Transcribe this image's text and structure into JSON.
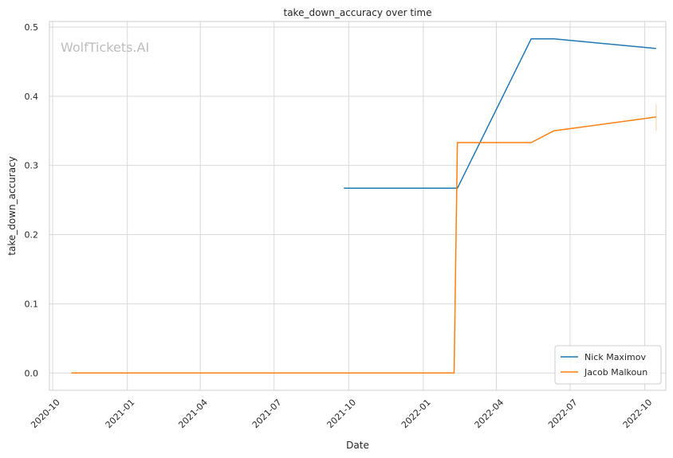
{
  "chart_data": {
    "type": "line",
    "title": "take_down_accuracy over time",
    "xlabel": "Date",
    "ylabel": "take_down_accuracy",
    "watermark": "WolfTickets.AI",
    "xlim": [
      "2020-09-27",
      "2022-10-27"
    ],
    "ylim": [
      -0.025,
      0.508
    ],
    "x_ticks": [
      "2020-10",
      "2021-01",
      "2021-04",
      "2021-07",
      "2021-10",
      "2022-01",
      "2022-04",
      "2022-07",
      "2022-10"
    ],
    "y_ticks": [
      "0.0",
      "0.1",
      "0.2",
      "0.3",
      "0.4",
      "0.5"
    ],
    "grid": true,
    "legend_position": "bottom-right",
    "series": [
      {
        "name": "Nick Maximov",
        "color": "#1f77b4",
        "points": [
          {
            "x": "2021-09-25",
            "y": 0.267
          },
          {
            "x": "2022-02-12",
            "y": 0.267
          },
          {
            "x": "2022-05-14",
            "y": 0.483
          },
          {
            "x": "2022-06-11",
            "y": 0.483
          },
          {
            "x": "2022-10-15",
            "y": 0.469
          }
        ]
      },
      {
        "name": "Jacob Malkoun",
        "color": "#ff7f0e",
        "points": [
          {
            "x": "2020-10-24",
            "y": 0.0
          },
          {
            "x": "2022-02-08",
            "y": 0.0
          },
          {
            "x": "2022-02-12",
            "y": 0.333
          },
          {
            "x": "2022-05-14",
            "y": 0.333
          },
          {
            "x": "2022-06-11",
            "y": 0.35
          },
          {
            "x": "2022-10-15",
            "y": 0.37
          }
        ],
        "error_bar": {
          "x": "2022-10-15",
          "low": 0.35,
          "high": 0.388
        }
      }
    ]
  }
}
